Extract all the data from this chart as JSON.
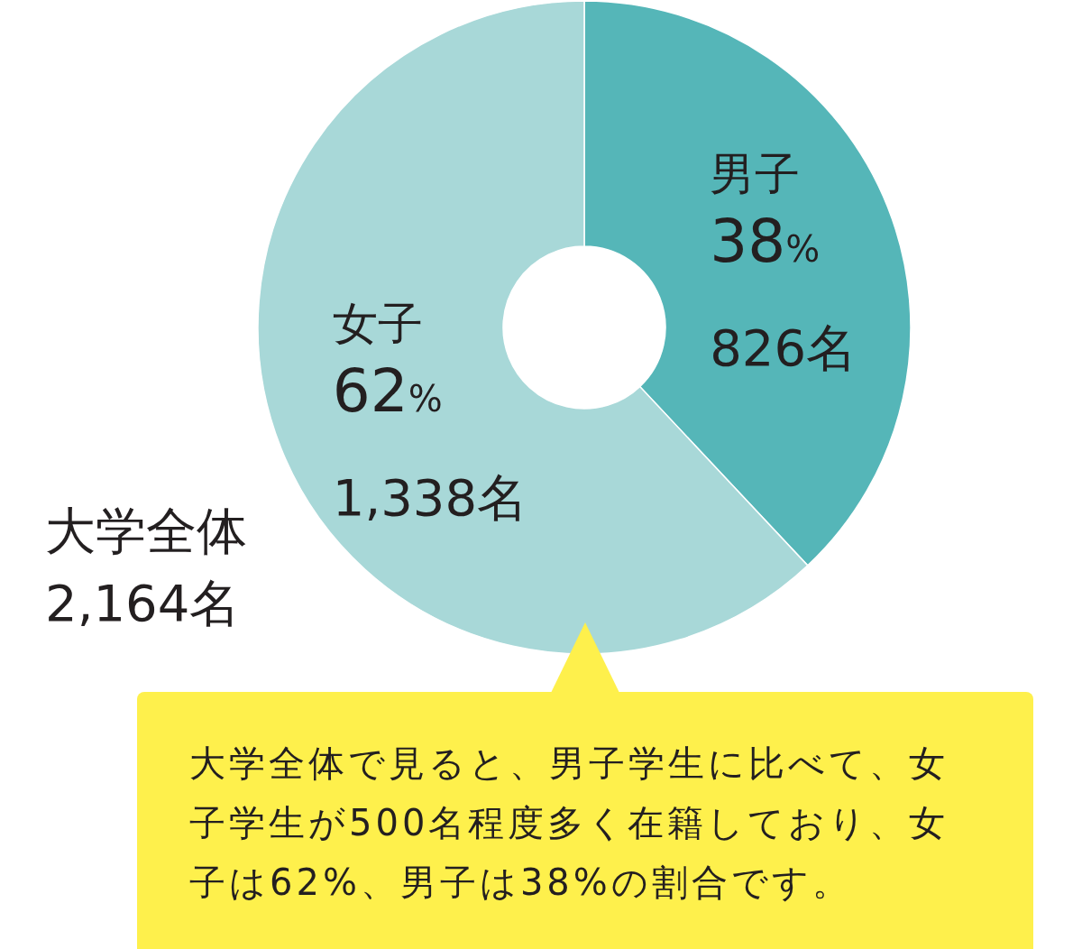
{
  "chart_data": {
    "type": "donut",
    "title": "大学全体\n2,164名",
    "categories": [
      "男子",
      "女子"
    ],
    "values": [
      38,
      62
    ],
    "value_labels": [
      "38%",
      "62%"
    ],
    "colors": [
      "#55b6b8",
      "#a8d8d8"
    ],
    "annotations": [
      {
        "text": "826名",
        "x": "男子"
      },
      {
        "text": "1,338名",
        "x": "女子"
      },
      "大学全体で見ると、男子学生に比べて、女子学生が500名程度多く在籍しており、女子は62%、男子は38%の割合です。"
    ]
  }
}
